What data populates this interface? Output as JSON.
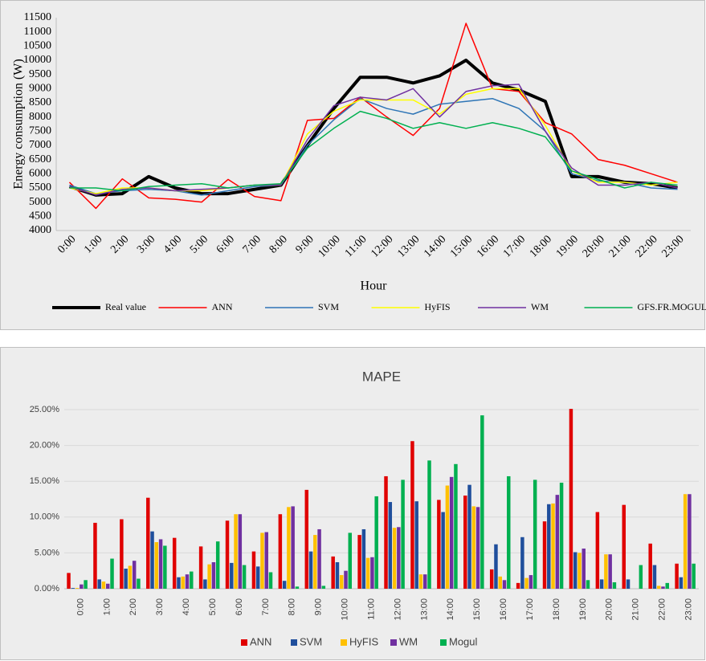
{
  "chart_data": [
    {
      "type": "line",
      "y_label": "Energy consumption (W)",
      "x_label": "Hour",
      "categories": [
        "0:00",
        "1:00",
        "2:00",
        "3:00",
        "4:00",
        "5:00",
        "6:00",
        "7:00",
        "8:00",
        "9:00",
        "10:00",
        "11:00",
        "12:00",
        "13:00",
        "14:00",
        "15:00",
        "16:00",
        "17:00",
        "18:00",
        "19:00",
        "20:00",
        "21:00",
        "22:00",
        "23:00"
      ],
      "series": [
        {
          "name": "Real value",
          "color": "#000000",
          "values": [
            5550,
            5250,
            5300,
            5900,
            5500,
            5300,
            5300,
            5450,
            5600,
            7000,
            8300,
            9400,
            9400,
            9200,
            9450,
            10000,
            9200,
            8950,
            8550,
            5900,
            5900,
            5700,
            5650,
            5500
          ]
        },
        {
          "name": "ANN",
          "color": "#ff0000",
          "values": [
            5700,
            4780,
            5820,
            5150,
            5100,
            5000,
            5800,
            5200,
            5050,
            7880,
            7950,
            8700,
            8000,
            7350,
            8300,
            11300,
            9000,
            8900,
            7800,
            7400,
            6500,
            6300,
            6000,
            5700
          ]
        },
        {
          "name": "SVM",
          "color": "#2e75b6",
          "values": [
            5600,
            5300,
            5400,
            5450,
            5400,
            5250,
            5400,
            5550,
            5600,
            7000,
            7900,
            8650,
            8300,
            8100,
            8450,
            8550,
            8650,
            8300,
            7500,
            6000,
            5750,
            5700,
            5500,
            5450
          ]
        },
        {
          "name": "HyFIS",
          "color": "#ffff00",
          "values": [
            5500,
            5300,
            5500,
            5500,
            5400,
            5400,
            5500,
            5600,
            5600,
            7400,
            8200,
            8600,
            8600,
            8600,
            8100,
            8800,
            9000,
            9000,
            7700,
            6100,
            5700,
            5700,
            5600,
            5700
          ]
        },
        {
          "name": "WM",
          "color": "#7030a0",
          "values": [
            5550,
            5250,
            5450,
            5500,
            5400,
            5450,
            5500,
            5600,
            5600,
            7200,
            8400,
            8700,
            8600,
            9000,
            8000,
            8900,
            9100,
            9150,
            7500,
            6200,
            5600,
            5600,
            5700,
            5500
          ]
        },
        {
          "name": "GFS.FR.MOGUL",
          "color": "#00b050",
          "values": [
            5500,
            5500,
            5400,
            5550,
            5600,
            5650,
            5500,
            5600,
            5650,
            6900,
            7600,
            8200,
            7950,
            7600,
            7800,
            7600,
            7800,
            7600,
            7300,
            6100,
            5800,
            5500,
            5700,
            5600
          ]
        }
      ],
      "ylim": [
        4000,
        11500
      ],
      "yticks": [
        4000,
        4500,
        5000,
        5500,
        6000,
        6500,
        7000,
        7500,
        8000,
        8500,
        9000,
        9500,
        10000,
        10500,
        11000,
        11500
      ],
      "grid": false,
      "legend": "bottom"
    },
    {
      "type": "bar",
      "title": "MAPE",
      "categories": [
        "0:00",
        "1:00",
        "2:00",
        "3:00",
        "4:00",
        "5:00",
        "6:00",
        "7:00",
        "8:00",
        "9:00",
        "10:00",
        "11:00",
        "12:00",
        "13:00",
        "14:00",
        "15:00",
        "16:00",
        "17:00",
        "18:00",
        "19:00",
        "20:00",
        "21:00",
        "22:00",
        "23:00"
      ],
      "series": [
        {
          "name": "ANN",
          "color": "#e00000",
          "values": [
            2.2,
            9.2,
            9.7,
            12.7,
            7.1,
            5.9,
            9.5,
            5.2,
            10.4,
            13.8,
            4.5,
            7.5,
            15.7,
            20.6,
            12.4,
            13,
            2.7,
            0.8,
            9.4,
            25.1,
            10.7,
            11.7,
            6.3,
            3.5
          ]
        },
        {
          "name": "SVM",
          "color": "#1f4e9c",
          "values": [
            0.1,
            1.3,
            2.8,
            8,
            1.6,
            1.3,
            3.6,
            3.1,
            1.1,
            5.2,
            3.7,
            8.3,
            12.1,
            12.2,
            10.7,
            14.5,
            6.2,
            7.2,
            11.8,
            5.1,
            1.3,
            1.3,
            3.3,
            1.6
          ]
        },
        {
          "name": "HyFIS",
          "color": "#ffc000",
          "values": [
            0.1,
            1,
            3.2,
            6.5,
            1.7,
            3.4,
            10.4,
            7.8,
            11.4,
            7.5,
            1.9,
            4.3,
            8.5,
            2,
            14.4,
            11.5,
            1.7,
            1.5,
            11.9,
            5,
            4.8,
            0,
            0.4,
            13.2
          ]
        },
        {
          "name": "WM",
          "color": "#7030a0",
          "values": [
            0.6,
            0.7,
            3.9,
            6.9,
            2,
            3.7,
            10.4,
            7.9,
            11.5,
            8.3,
            2.5,
            4.4,
            8.6,
            2,
            15.6,
            11.4,
            1.2,
            1.9,
            13.1,
            5.6,
            4.8,
            0,
            0.3,
            13.2
          ]
        },
        {
          "name": "Mogul",
          "color": "#00b050",
          "values": [
            1.2,
            4.2,
            1.4,
            6,
            2.4,
            6.6,
            3.3,
            2.3,
            0.3,
            0.4,
            7.8,
            12.9,
            15.2,
            17.9,
            17.4,
            24.2,
            15.7,
            15.2,
            14.8,
            1.2,
            0.9,
            3.3,
            0.8,
            3.5
          ]
        }
      ],
      "ylim": [
        0,
        25
      ],
      "yticks": [
        {
          "value": 0,
          "label": "0.00%"
        },
        {
          "value": 5,
          "label": "5.00%"
        },
        {
          "value": 10,
          "label": "10.00%"
        },
        {
          "value": 15,
          "label": "15.00%"
        },
        {
          "value": 20,
          "label": "20.00%"
        },
        {
          "value": 25,
          "label": "25.00%"
        }
      ],
      "grid": true,
      "legend": "bottom"
    }
  ]
}
